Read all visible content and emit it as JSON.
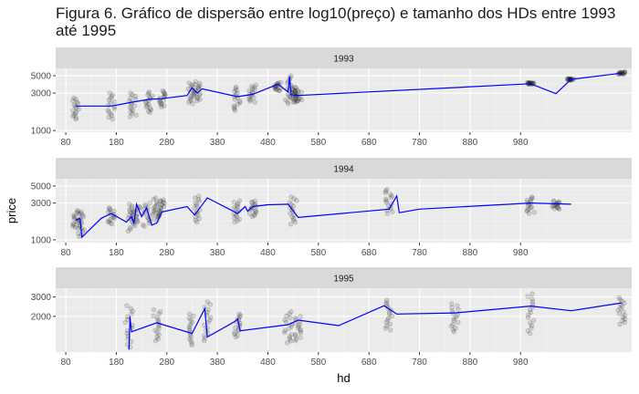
{
  "title": "Figura 6. Gráfico de dispersão entre log10(preço) e tamanho dos HDs entre 1993 até 1995",
  "chart_data": {
    "type": "scatter",
    "xlabel": "hd",
    "ylabel": "price",
    "x_scale": "linear",
    "y_scale": "log10",
    "xlim": [
      60,
      1200
    ],
    "x_ticks": [
      80,
      180,
      280,
      380,
      480,
      580,
      680,
      780,
      880,
      980
    ],
    "grid": true,
    "point_color": "#000000",
    "line_color": "#0000ff",
    "panel_background": "#ebebeb",
    "strip_background": "#d9d9d9",
    "panels": [
      {
        "label": "1993",
        "ylim": [
          950,
          6200
        ],
        "y_ticks": [
          1000,
          3000,
          5000
        ],
        "clusters": [
          {
            "x": 100,
            "y_min": 1400,
            "y_max": 2600
          },
          {
            "x": 170,
            "y_min": 1400,
            "y_max": 3000
          },
          {
            "x": 212,
            "y_min": 1500,
            "y_max": 3000
          },
          {
            "x": 245,
            "y_min": 1700,
            "y_max": 3100
          },
          {
            "x": 270,
            "y_min": 2000,
            "y_max": 3200
          },
          {
            "x": 330,
            "y_min": 2200,
            "y_max": 4200
          },
          {
            "x": 340,
            "y_min": 2400,
            "y_max": 4000
          },
          {
            "x": 420,
            "y_min": 1800,
            "y_max": 3600
          },
          {
            "x": 450,
            "y_min": 2300,
            "y_max": 3800
          },
          {
            "x": 500,
            "y_min": 3200,
            "y_max": 4100
          },
          {
            "x": 520,
            "y_min": 2200,
            "y_max": 5000
          },
          {
            "x": 530,
            "y_min": 2300,
            "y_max": 3600
          },
          {
            "x": 540,
            "y_min": 2300,
            "y_max": 3300
          },
          {
            "x": 1000,
            "y_min": 3900,
            "y_max": 4100
          },
          {
            "x": 1080,
            "y_min": 4400,
            "y_max": 4600
          },
          {
            "x": 1180,
            "y_min": 5200,
            "y_max": 5600
          }
        ],
        "line": [
          {
            "x": 100,
            "y": 2050
          },
          {
            "x": 170,
            "y": 2050
          },
          {
            "x": 212,
            "y": 2300
          },
          {
            "x": 245,
            "y": 2500
          },
          {
            "x": 270,
            "y": 2550
          },
          {
            "x": 320,
            "y": 2800
          },
          {
            "x": 330,
            "y": 3500
          },
          {
            "x": 340,
            "y": 3000
          },
          {
            "x": 350,
            "y": 3400
          },
          {
            "x": 420,
            "y": 2700
          },
          {
            "x": 450,
            "y": 2900
          },
          {
            "x": 500,
            "y": 3900
          },
          {
            "x": 520,
            "y": 3100
          },
          {
            "x": 523,
            "y": 4900
          },
          {
            "x": 526,
            "y": 2850
          },
          {
            "x": 540,
            "y": 2800
          },
          {
            "x": 1000,
            "y": 3950
          },
          {
            "x": 1050,
            "y": 2950
          },
          {
            "x": 1080,
            "y": 4500
          },
          {
            "x": 1180,
            "y": 5400
          }
        ]
      },
      {
        "label": "1994",
        "ylim": [
          920,
          6200
        ],
        "y_ticks": [
          1000,
          3000,
          5000
        ],
        "clusters": [
          {
            "x": 100,
            "y_min": 1400,
            "y_max": 2400
          },
          {
            "x": 110,
            "y_min": 1100,
            "y_max": 2300
          },
          {
            "x": 170,
            "y_min": 1600,
            "y_max": 2600
          },
          {
            "x": 210,
            "y_min": 1300,
            "y_max": 2900
          },
          {
            "x": 220,
            "y_min": 1700,
            "y_max": 2700
          },
          {
            "x": 240,
            "y_min": 1500,
            "y_max": 3000
          },
          {
            "x": 260,
            "y_min": 1800,
            "y_max": 3500
          },
          {
            "x": 270,
            "y_min": 2000,
            "y_max": 3300
          },
          {
            "x": 340,
            "y_min": 1700,
            "y_max": 3700
          },
          {
            "x": 420,
            "y_min": 1700,
            "y_max": 3200
          },
          {
            "x": 450,
            "y_min": 2000,
            "y_max": 3200
          },
          {
            "x": 530,
            "y_min": 1600,
            "y_max": 3600
          },
          {
            "x": 720,
            "y_min": 2200,
            "y_max": 4500
          },
          {
            "x": 1000,
            "y_min": 2200,
            "y_max": 3600
          },
          {
            "x": 1050,
            "y_min": 2500,
            "y_max": 3200
          }
        ],
        "line": [
          {
            "x": 100,
            "y": 1800
          },
          {
            "x": 108,
            "y": 1900
          },
          {
            "x": 112,
            "y": 1080
          },
          {
            "x": 150,
            "y": 1900
          },
          {
            "x": 170,
            "y": 2200
          },
          {
            "x": 200,
            "y": 1700
          },
          {
            "x": 210,
            "y": 2000
          },
          {
            "x": 215,
            "y": 1650
          },
          {
            "x": 220,
            "y": 2900
          },
          {
            "x": 230,
            "y": 2000
          },
          {
            "x": 240,
            "y": 2600
          },
          {
            "x": 250,
            "y": 1550
          },
          {
            "x": 260,
            "y": 1650
          },
          {
            "x": 270,
            "y": 2300
          },
          {
            "x": 320,
            "y": 2700
          },
          {
            "x": 335,
            "y": 2100
          },
          {
            "x": 360,
            "y": 3500
          },
          {
            "x": 420,
            "y": 2200
          },
          {
            "x": 435,
            "y": 2700
          },
          {
            "x": 440,
            "y": 2350
          },
          {
            "x": 450,
            "y": 2700
          },
          {
            "x": 480,
            "y": 2850
          },
          {
            "x": 520,
            "y": 2900
          },
          {
            "x": 540,
            "y": 1950
          },
          {
            "x": 720,
            "y": 2500
          },
          {
            "x": 735,
            "y": 3700
          },
          {
            "x": 740,
            "y": 2250
          },
          {
            "x": 780,
            "y": 2500
          },
          {
            "x": 1000,
            "y": 3000
          },
          {
            "x": 1080,
            "y": 2900
          }
        ]
      },
      {
        "label": "1995",
        "ylim": [
          950,
          3600
        ],
        "y_ticks": [
          2000,
          3000
        ],
        "clusters": [
          {
            "x": 205,
            "y_min": 1050,
            "y_max": 2500
          },
          {
            "x": 260,
            "y_min": 1200,
            "y_max": 2300
          },
          {
            "x": 330,
            "y_min": 1100,
            "y_max": 2100
          },
          {
            "x": 360,
            "y_min": 1200,
            "y_max": 2700
          },
          {
            "x": 420,
            "y_min": 1300,
            "y_max": 2100
          },
          {
            "x": 520,
            "y_min": 1150,
            "y_max": 2200
          },
          {
            "x": 540,
            "y_min": 1200,
            "y_max": 2000
          },
          {
            "x": 720,
            "y_min": 1500,
            "y_max": 2800
          },
          {
            "x": 850,
            "y_min": 1450,
            "y_max": 2600
          },
          {
            "x": 1000,
            "y_min": 1400,
            "y_max": 3200
          },
          {
            "x": 1180,
            "y_min": 1700,
            "y_max": 2950
          }
        ],
        "line": [
          {
            "x": 205,
            "y": 1000
          },
          {
            "x": 207,
            "y": 2000
          },
          {
            "x": 210,
            "y": 1450
          },
          {
            "x": 260,
            "y": 1750
          },
          {
            "x": 330,
            "y": 1400
          },
          {
            "x": 355,
            "y": 2350
          },
          {
            "x": 360,
            "y": 1300
          },
          {
            "x": 415,
            "y": 1800
          },
          {
            "x": 420,
            "y": 1900
          },
          {
            "x": 425,
            "y": 1480
          },
          {
            "x": 520,
            "y": 1680
          },
          {
            "x": 540,
            "y": 1850
          },
          {
            "x": 620,
            "y": 1650
          },
          {
            "x": 710,
            "y": 2500
          },
          {
            "x": 735,
            "y": 2100
          },
          {
            "x": 850,
            "y": 2150
          },
          {
            "x": 1000,
            "y": 2480
          },
          {
            "x": 1080,
            "y": 2250
          },
          {
            "x": 1180,
            "y": 2650
          }
        ]
      }
    ]
  }
}
